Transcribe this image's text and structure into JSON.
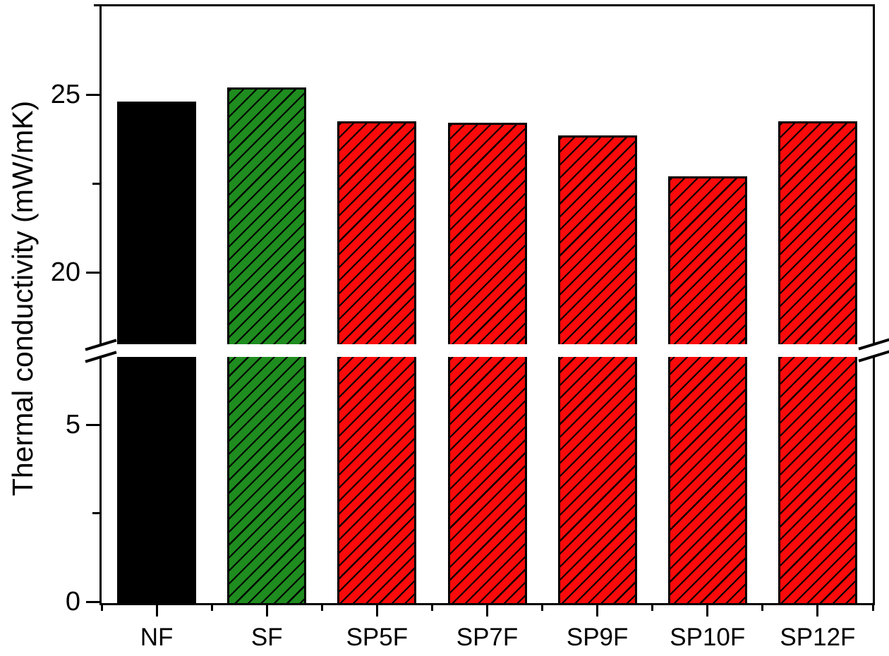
{
  "figure": {
    "background_color": "#ffffff",
    "frame_color": "#000000"
  },
  "chart_data": {
    "type": "bar",
    "title": "",
    "xlabel": "",
    "ylabel": "Thermal conductivity (mW/mK)",
    "categories": [
      "NF",
      "SF",
      "SP5F",
      "SP7F",
      "SP9F",
      "SP10F",
      "SP12F"
    ],
    "values": [
      24.8,
      25.2,
      24.25,
      24.2,
      23.85,
      22.7,
      24.25
    ],
    "bar_colors": [
      "#000000",
      "#1e8c1e",
      "#fa0a0a",
      "#fa0a0a",
      "#fa0a0a",
      "#fa0a0a",
      "#fa0a0a"
    ],
    "bar_hatched": [
      false,
      true,
      true,
      true,
      true,
      true,
      true
    ],
    "hatch_style": "diagonal-forward",
    "hatch_color": "#000000",
    "bar_edge_color": "#000000",
    "grid": false,
    "legend": null,
    "y_axis": {
      "major_ticks": [
        {
          "value": 25,
          "label": "25"
        },
        {
          "value": 20,
          "label": "20"
        },
        {
          "value": 5,
          "label": "5"
        },
        {
          "value": 0,
          "label": "0"
        }
      ],
      "minor_ticks": [
        22.5,
        2.5
      ],
      "axis_break": {
        "lower_segment": [
          0,
          6.9
        ],
        "upper_segment": [
          18,
          27.5
        ]
      }
    }
  }
}
